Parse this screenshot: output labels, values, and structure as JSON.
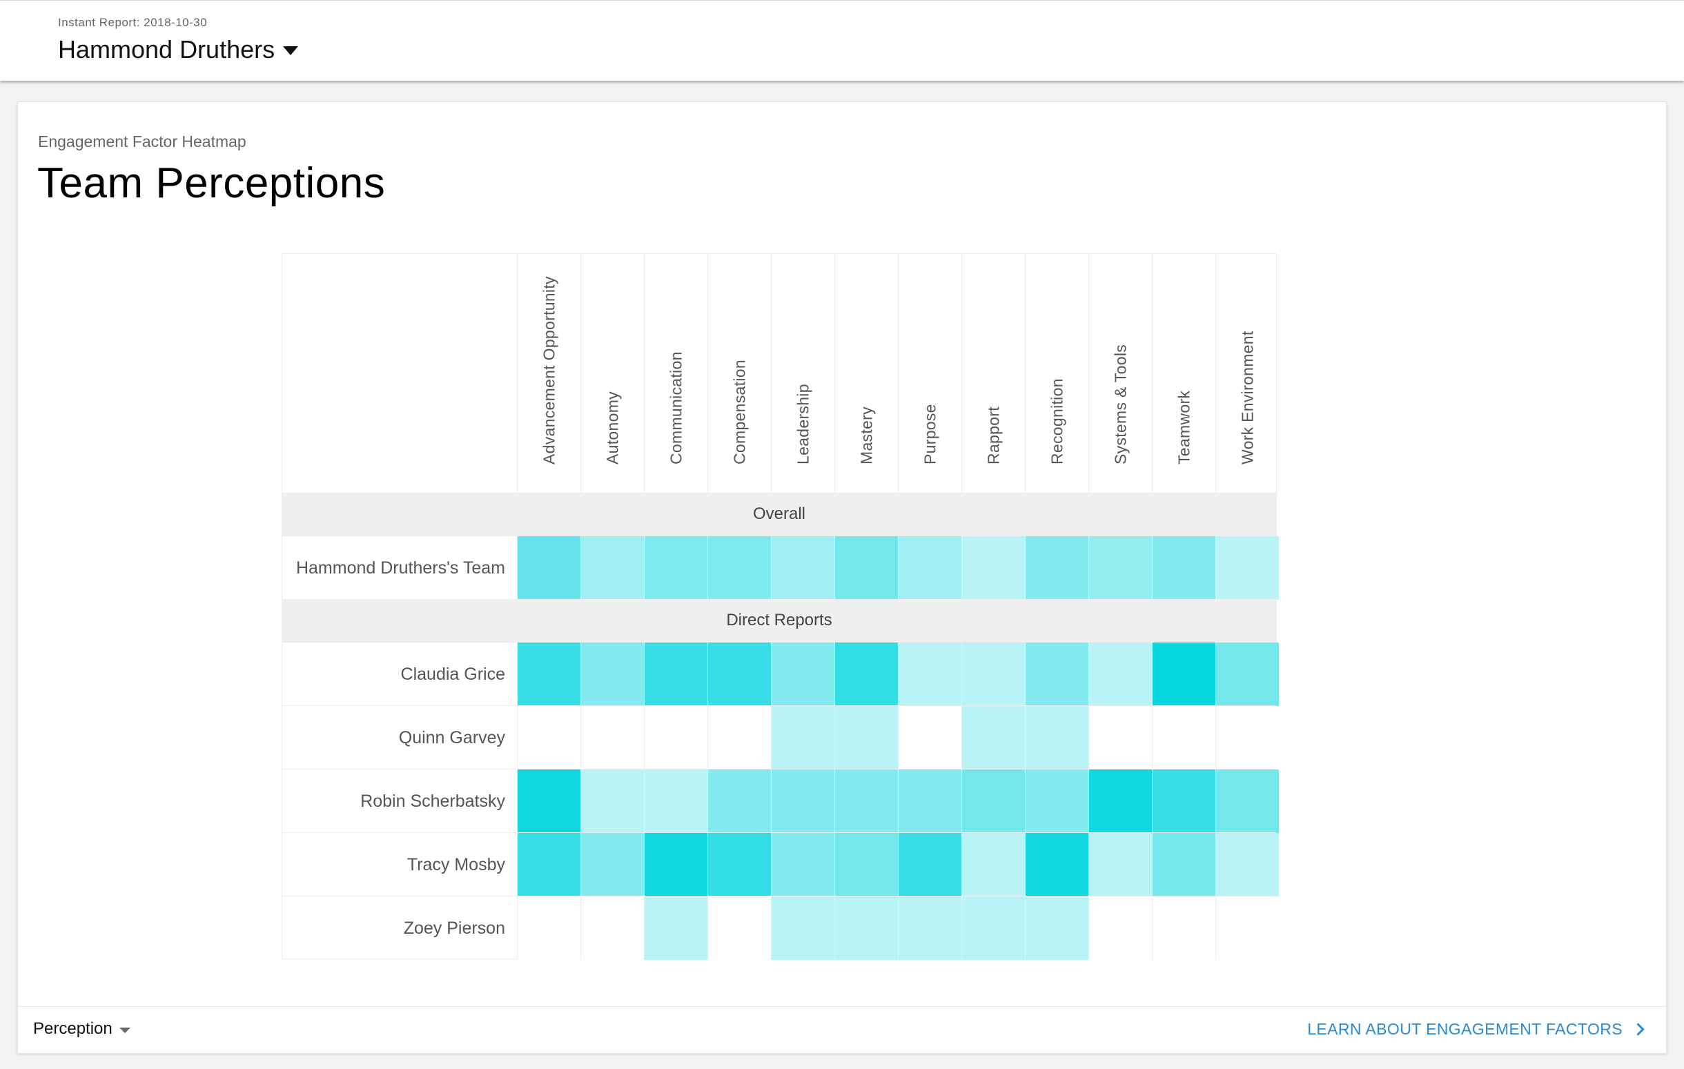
{
  "header": {
    "report_label": "Instant Report: 2018-10-30",
    "person_name": "Hammond Druthers"
  },
  "card": {
    "subtitle": "Engagement Factor Heatmap",
    "title": "Team Perceptions"
  },
  "heatmap": {
    "columns": [
      "Advancement Opportunity",
      "Autonomy",
      "Communication",
      "Compensation",
      "Leadership",
      "Mastery",
      "Purpose",
      "Rapport",
      "Recognition",
      "Systems & Tools",
      "Teamwork",
      "Work Environment"
    ],
    "sections": {
      "overall": "Overall",
      "direct_reports": "Direct Reports"
    },
    "overall_row": {
      "name": "Hammond Druthers's Team",
      "levels": [
        0.62,
        0.38,
        0.52,
        0.52,
        0.38,
        0.56,
        0.38,
        0.28,
        0.5,
        0.42,
        0.5,
        0.28
      ]
    },
    "direct_reports": [
      {
        "name": "Claudia Grice",
        "levels": [
          0.8,
          0.5,
          0.8,
          0.8,
          0.5,
          0.82,
          0.28,
          0.28,
          0.5,
          0.28,
          1.0,
          0.56
        ]
      },
      {
        "name": "Quinn Garvey",
        "levels": [
          0,
          0,
          0,
          0,
          0.28,
          0.28,
          0,
          0.28,
          0.28,
          0,
          0,
          0
        ]
      },
      {
        "name": "Robin Scherbatsky",
        "levels": [
          0.95,
          0.28,
          0.28,
          0.5,
          0.5,
          0.5,
          0.5,
          0.56,
          0.5,
          0.95,
          0.8,
          0.56
        ]
      },
      {
        "name": "Tracy Mosby",
        "levels": [
          0.8,
          0.5,
          0.95,
          0.82,
          0.5,
          0.56,
          0.8,
          0.28,
          0.95,
          0.28,
          0.56,
          0.28
        ]
      },
      {
        "name": "Zoey Pierson",
        "levels": [
          0,
          0,
          0.28,
          0,
          0.28,
          0.28,
          0.28,
          0.28,
          0.28,
          0,
          0,
          0
        ]
      }
    ],
    "color_scale": {
      "low": "#ffffff",
      "high": "#06d5de"
    }
  },
  "footer": {
    "view_label": "Perception",
    "learn_link": "LEARN ABOUT ENGAGEMENT FACTORS"
  }
}
